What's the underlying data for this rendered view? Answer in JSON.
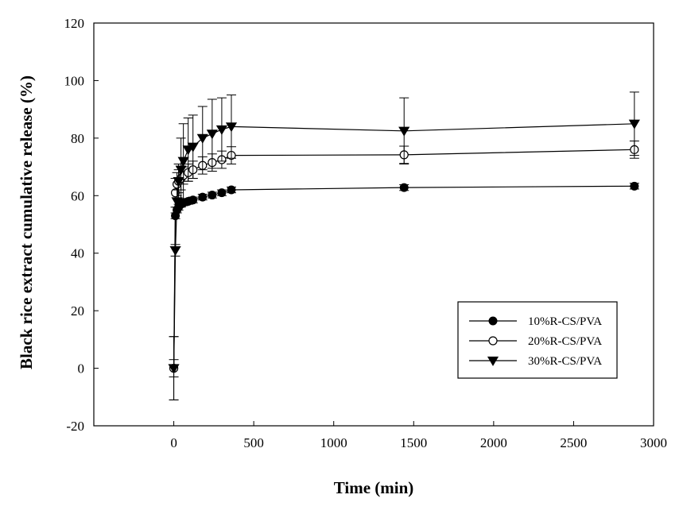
{
  "chart_data": {
    "type": "line",
    "title": "",
    "xlabel": "Time (min)",
    "ylabel": "Black rice extract cumulative release (%)",
    "xlim": [
      -500,
      3000
    ],
    "ylim": [
      -20,
      120
    ],
    "x_ticks": [
      0,
      500,
      1000,
      1500,
      2000,
      2500,
      3000
    ],
    "y_ticks": [
      -20,
      0,
      20,
      40,
      60,
      80,
      100,
      120
    ],
    "x_tick_labels": [
      "0",
      "500",
      "1000",
      "1500",
      "2000",
      "2500",
      "3000"
    ],
    "y_tick_labels": [
      "-20",
      "0",
      "20",
      "40",
      "60",
      "80",
      "100",
      "120"
    ],
    "grid": false,
    "legend_position": "bottom-right",
    "series": [
      {
        "name": "10%R-CS/PVA",
        "marker": "filled-circle",
        "color": "#000000",
        "points": [
          {
            "x": 0,
            "y": 0,
            "err": 3
          },
          {
            "x": 10,
            "y": 53,
            "err": 1
          },
          {
            "x": 20,
            "y": 55,
            "err": 1
          },
          {
            "x": 30,
            "y": 56,
            "err": 1
          },
          {
            "x": 45,
            "y": 57,
            "err": 1
          },
          {
            "x": 60,
            "y": 57.5,
            "err": 1
          },
          {
            "x": 90,
            "y": 58,
            "err": 1
          },
          {
            "x": 120,
            "y": 58.5,
            "err": 1
          },
          {
            "x": 180,
            "y": 59.5,
            "err": 1
          },
          {
            "x": 240,
            "y": 60.2,
            "err": 1
          },
          {
            "x": 300,
            "y": 61,
            "err": 1
          },
          {
            "x": 360,
            "y": 62,
            "err": 1
          },
          {
            "x": 1440,
            "y": 62.8,
            "err": 1
          },
          {
            "x": 2880,
            "y": 63.3,
            "err": 1
          }
        ]
      },
      {
        "name": "20%R-CS/PVA",
        "marker": "open-circle",
        "color": "#000000",
        "points": [
          {
            "x": 0,
            "y": 0,
            "err": 11
          },
          {
            "x": 10,
            "y": 61,
            "err": 5
          },
          {
            "x": 20,
            "y": 64,
            "err": 4
          },
          {
            "x": 30,
            "y": 65,
            "err": 4
          },
          {
            "x": 45,
            "y": 66,
            "err": 4
          },
          {
            "x": 60,
            "y": 67,
            "err": 3
          },
          {
            "x": 90,
            "y": 68,
            "err": 3
          },
          {
            "x": 120,
            "y": 69,
            "err": 3
          },
          {
            "x": 180,
            "y": 70.5,
            "err": 3
          },
          {
            "x": 240,
            "y": 71.5,
            "err": 3
          },
          {
            "x": 300,
            "y": 72.5,
            "err": 3
          },
          {
            "x": 360,
            "y": 74,
            "err": 3
          },
          {
            "x": 1440,
            "y": 74.2,
            "err": 3
          },
          {
            "x": 2880,
            "y": 76,
            "err": 3
          }
        ]
      },
      {
        "name": "30%R-CS/PVA",
        "marker": "filled-triangle-down",
        "color": "#000000",
        "points": [
          {
            "x": 0,
            "y": 0,
            "err": 11
          },
          {
            "x": 10,
            "y": 41,
            "err": 2
          },
          {
            "x": 20,
            "y": 58,
            "err": 4
          },
          {
            "x": 30,
            "y": 65,
            "err": 6
          },
          {
            "x": 45,
            "y": 69,
            "err": 11
          },
          {
            "x": 60,
            "y": 72,
            "err": 13
          },
          {
            "x": 90,
            "y": 76,
            "err": 11
          },
          {
            "x": 120,
            "y": 77,
            "err": 11
          },
          {
            "x": 180,
            "y": 80,
            "err": 11
          },
          {
            "x": 240,
            "y": 81.5,
            "err": 12
          },
          {
            "x": 300,
            "y": 83,
            "err": 11
          },
          {
            "x": 360,
            "y": 84,
            "err": 11
          },
          {
            "x": 1440,
            "y": 82.5,
            "err": 11.5
          },
          {
            "x": 2880,
            "y": 85,
            "err": 11
          }
        ]
      }
    ]
  }
}
